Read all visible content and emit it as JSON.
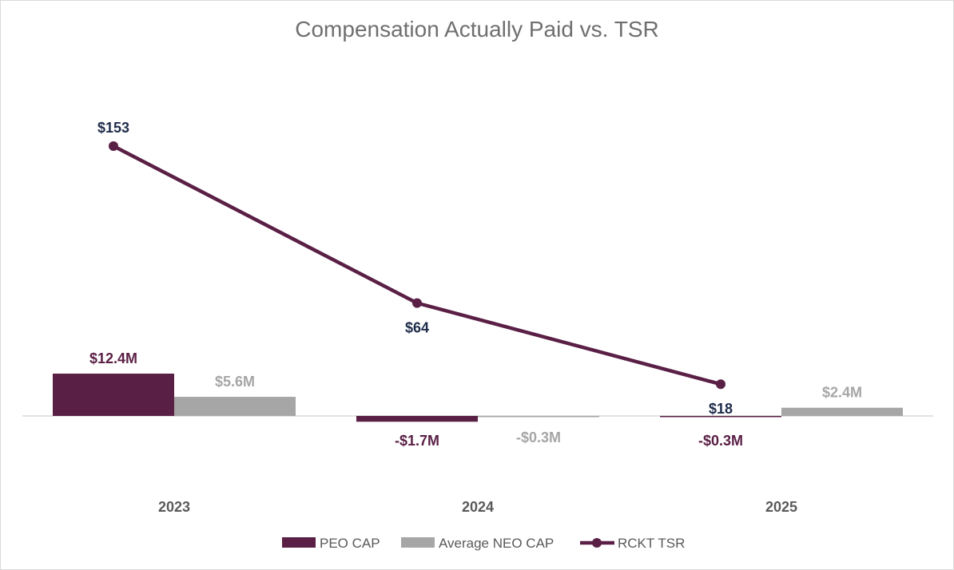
{
  "chart_data": {
    "type": "bar",
    "title": "Compensation Actually Paid vs. TSR",
    "categories": [
      "2023",
      "2024",
      "2025"
    ],
    "series": [
      {
        "name": "PEO CAP",
        "kind": "bar",
        "color": "#5a1f45",
        "values": [
          12.4,
          -1.7,
          -0.3
        ],
        "labels": [
          "$12.4M",
          "-$1.7M",
          "-$0.3M"
        ]
      },
      {
        "name": "Average NEO CAP",
        "kind": "bar",
        "color": "#a6a6a6",
        "values": [
          5.6,
          -0.3,
          2.4
        ],
        "labels": [
          "$5.6M",
          "-$0.3M",
          "$2.4M"
        ]
      },
      {
        "name": "RCKT TSR",
        "kind": "line",
        "color": "#5a1f45",
        "values": [
          153,
          64,
          18
        ],
        "labels": [
          "$153",
          "$64",
          "$18"
        ]
      }
    ],
    "grid": false,
    "legend": "bottom"
  }
}
